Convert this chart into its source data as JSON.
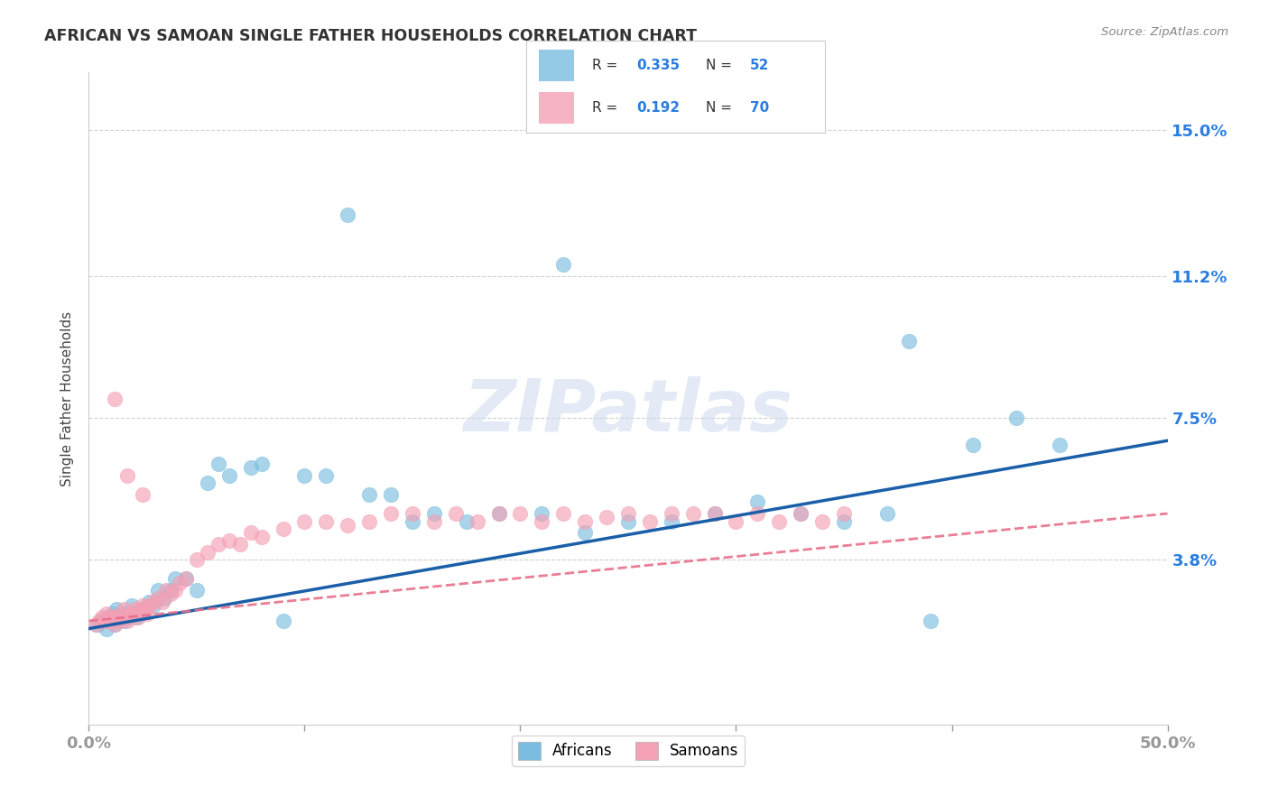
{
  "title": "AFRICAN VS SAMOAN SINGLE FATHER HOUSEHOLDS CORRELATION CHART",
  "source": "Source: ZipAtlas.com",
  "ylabel": "Single Father Households",
  "xlabel": "",
  "xlim": [
    0.0,
    0.5
  ],
  "ylim": [
    -0.005,
    0.165
  ],
  "ytick_values": [
    0.038,
    0.075,
    0.112,
    0.15
  ],
  "ytick_labels": [
    "3.8%",
    "7.5%",
    "11.2%",
    "15.0%"
  ],
  "african_color": "#7bbde0",
  "samoan_color": "#f4a0b5",
  "trend_african_color": "#1a5fa8",
  "trend_samoan_color": "#e8708a",
  "trend_african_start": 0.02,
  "trend_african_end": 0.069,
  "trend_samoan_start": 0.022,
  "trend_samoan_end": 0.05,
  "R_african": 0.335,
  "N_african": 52,
  "R_samoan": 0.192,
  "N_samoan": 70,
  "background_color": "#ffffff",
  "grid_color": "#d0d0d0",
  "watermark": "ZIPatlas",
  "african_x": [
    0.004,
    0.006,
    0.008,
    0.009,
    0.01,
    0.011,
    0.012,
    0.013,
    0.015,
    0.016,
    0.018,
    0.02,
    0.022,
    0.025,
    0.028,
    0.03,
    0.032,
    0.035,
    0.038,
    0.04,
    0.045,
    0.05,
    0.055,
    0.06,
    0.065,
    0.075,
    0.08,
    0.09,
    0.1,
    0.11,
    0.12,
    0.13,
    0.14,
    0.15,
    0.16,
    0.175,
    0.19,
    0.21,
    0.23,
    0.25,
    0.27,
    0.29,
    0.31,
    0.33,
    0.35,
    0.37,
    0.39,
    0.41,
    0.43,
    0.45,
    0.22,
    0.38
  ],
  "african_y": [
    0.021,
    0.022,
    0.02,
    0.023,
    0.022,
    0.024,
    0.021,
    0.025,
    0.023,
    0.022,
    0.024,
    0.026,
    0.023,
    0.025,
    0.027,
    0.026,
    0.03,
    0.028,
    0.03,
    0.033,
    0.033,
    0.03,
    0.058,
    0.063,
    0.06,
    0.062,
    0.063,
    0.022,
    0.06,
    0.06,
    0.128,
    0.055,
    0.055,
    0.048,
    0.05,
    0.048,
    0.05,
    0.05,
    0.045,
    0.048,
    0.048,
    0.05,
    0.053,
    0.05,
    0.048,
    0.05,
    0.022,
    0.068,
    0.075,
    0.068,
    0.115,
    0.095
  ],
  "samoan_x": [
    0.003,
    0.005,
    0.006,
    0.007,
    0.008,
    0.009,
    0.01,
    0.011,
    0.012,
    0.013,
    0.014,
    0.015,
    0.016,
    0.017,
    0.018,
    0.019,
    0.02,
    0.021,
    0.022,
    0.023,
    0.024,
    0.025,
    0.026,
    0.027,
    0.028,
    0.03,
    0.032,
    0.034,
    0.036,
    0.038,
    0.04,
    0.042,
    0.045,
    0.05,
    0.055,
    0.06,
    0.065,
    0.07,
    0.075,
    0.08,
    0.09,
    0.1,
    0.11,
    0.12,
    0.13,
    0.14,
    0.15,
    0.16,
    0.17,
    0.18,
    0.19,
    0.2,
    0.21,
    0.22,
    0.23,
    0.24,
    0.25,
    0.26,
    0.27,
    0.28,
    0.29,
    0.3,
    0.31,
    0.32,
    0.33,
    0.34,
    0.35,
    0.012,
    0.018,
    0.025
  ],
  "samoan_y": [
    0.021,
    0.022,
    0.023,
    0.022,
    0.024,
    0.022,
    0.023,
    0.022,
    0.021,
    0.023,
    0.022,
    0.024,
    0.025,
    0.023,
    0.022,
    0.023,
    0.024,
    0.025,
    0.024,
    0.023,
    0.025,
    0.026,
    0.025,
    0.024,
    0.026,
    0.027,
    0.028,
    0.027,
    0.03,
    0.029,
    0.03,
    0.032,
    0.033,
    0.038,
    0.04,
    0.042,
    0.043,
    0.042,
    0.045,
    0.044,
    0.046,
    0.048,
    0.048,
    0.047,
    0.048,
    0.05,
    0.05,
    0.048,
    0.05,
    0.048,
    0.05,
    0.05,
    0.048,
    0.05,
    0.048,
    0.049,
    0.05,
    0.048,
    0.05,
    0.05,
    0.05,
    0.048,
    0.05,
    0.048,
    0.05,
    0.048,
    0.05,
    0.08,
    0.06,
    0.055
  ]
}
